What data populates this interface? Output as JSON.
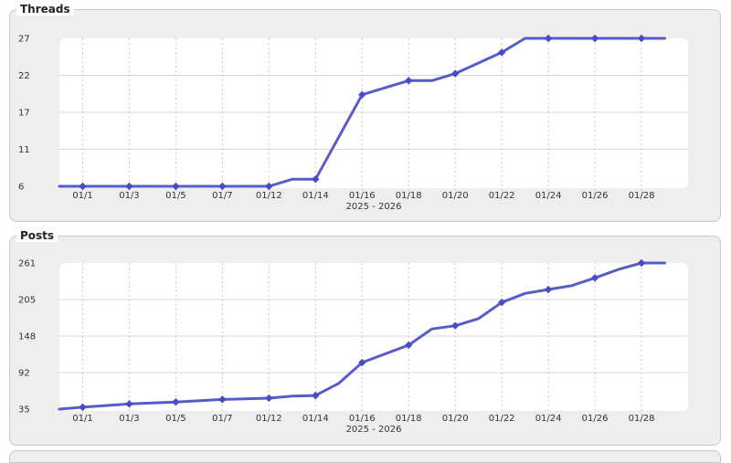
{
  "colors": {
    "line": "#565dc9",
    "marker": "#474ec5",
    "panel_bg": "#eeeeee",
    "panel_border": "#c9c9c9",
    "grid_h": "#d9d9d9",
    "grid_v": "#c9c9c9",
    "tick_text": "#333333"
  },
  "chart_data": [
    {
      "type": "line",
      "title": "Threads",
      "x_tick_labels": [
        "01/1",
        "01/3",
        "01/5",
        "01/7",
        "01/12",
        "01/14",
        "01/16",
        "01/18",
        "01/20",
        "01/22",
        "01/24",
        "01/26",
        "01/28"
      ],
      "x_axis_caption": "2025 - 2026",
      "y_tick_labels": [
        "27",
        "22",
        "17",
        "11",
        "6"
      ],
      "ylim": [
        6,
        27
      ],
      "grid": "horizontal solid, vertical dashed",
      "legend_position": "none",
      "line_color": "#565dc9",
      "marker_color": "#474ec5",
      "points": [
        {
          "date": "12/31",
          "x": -0.5,
          "value": 6,
          "marker": false
        },
        {
          "date": "01/1",
          "x": 0,
          "value": 6,
          "marker": true
        },
        {
          "date": "01/3",
          "x": 1,
          "value": 6,
          "marker": true
        },
        {
          "date": "01/5",
          "x": 2,
          "value": 6,
          "marker": true
        },
        {
          "date": "01/7",
          "x": 3,
          "value": 6,
          "marker": true
        },
        {
          "date": "01/12",
          "x": 4,
          "value": 6,
          "marker": true
        },
        {
          "date": "01/13",
          "x": 4.5,
          "value": 7,
          "marker": false
        },
        {
          "date": "01/14",
          "x": 5,
          "value": 7,
          "marker": true
        },
        {
          "date": "01/16",
          "x": 6,
          "value": 19,
          "marker": true
        },
        {
          "date": "01/18",
          "x": 7,
          "value": 21,
          "marker": true
        },
        {
          "date": "01/19",
          "x": 7.5,
          "value": 21,
          "marker": false
        },
        {
          "date": "01/20",
          "x": 8,
          "value": 22,
          "marker": true
        },
        {
          "date": "01/22",
          "x": 9,
          "value": 25,
          "marker": true
        },
        {
          "date": "01/23",
          "x": 9.5,
          "value": 27,
          "marker": false
        },
        {
          "date": "01/24",
          "x": 10,
          "value": 27,
          "marker": true
        },
        {
          "date": "01/26",
          "x": 11,
          "value": 27,
          "marker": true
        },
        {
          "date": "01/28",
          "x": 12,
          "value": 27,
          "marker": true
        },
        {
          "date": "01/29",
          "x": 12.5,
          "value": 27,
          "marker": false
        }
      ]
    },
    {
      "type": "line",
      "title": "Posts",
      "x_tick_labels": [
        "01/1",
        "01/3",
        "01/5",
        "01/7",
        "01/12",
        "01/14",
        "01/16",
        "01/18",
        "01/20",
        "01/22",
        "01/24",
        "01/26",
        "01/28"
      ],
      "x_axis_caption": "2025 - 2026",
      "y_tick_labels": [
        "261",
        "205",
        "148",
        "92",
        "35"
      ],
      "ylim": [
        35,
        261
      ],
      "grid": "horizontal solid, vertical dashed",
      "legend_position": "none",
      "line_color": "#565dc9",
      "marker_color": "#474ec5",
      "points": [
        {
          "date": "12/31",
          "x": -0.5,
          "value": 35,
          "marker": false
        },
        {
          "date": "01/1",
          "x": 0,
          "value": 38,
          "marker": true
        },
        {
          "date": "01/3",
          "x": 1,
          "value": 43,
          "marker": true
        },
        {
          "date": "01/5",
          "x": 2,
          "value": 46,
          "marker": true
        },
        {
          "date": "01/7",
          "x": 3,
          "value": 50,
          "marker": true
        },
        {
          "date": "01/12",
          "x": 4,
          "value": 52,
          "marker": true
        },
        {
          "date": "01/13",
          "x": 4.5,
          "value": 55,
          "marker": false
        },
        {
          "date": "01/14",
          "x": 5,
          "value": 56,
          "marker": true
        },
        {
          "date": "01/15",
          "x": 5.5,
          "value": 75,
          "marker": false
        },
        {
          "date": "01/16",
          "x": 6,
          "value": 107,
          "marker": true
        },
        {
          "date": "01/18",
          "x": 7,
          "value": 134,
          "marker": true
        },
        {
          "date": "01/19",
          "x": 7.5,
          "value": 159,
          "marker": false
        },
        {
          "date": "01/20",
          "x": 8,
          "value": 164,
          "marker": true
        },
        {
          "date": "01/21",
          "x": 8.5,
          "value": 175,
          "marker": false
        },
        {
          "date": "01/22",
          "x": 9,
          "value": 200,
          "marker": true
        },
        {
          "date": "01/23",
          "x": 9.5,
          "value": 214,
          "marker": false
        },
        {
          "date": "01/24",
          "x": 10,
          "value": 220,
          "marker": true
        },
        {
          "date": "01/25",
          "x": 10.5,
          "value": 226,
          "marker": false
        },
        {
          "date": "01/26",
          "x": 11,
          "value": 238,
          "marker": true
        },
        {
          "date": "01/27",
          "x": 11.5,
          "value": 251,
          "marker": false
        },
        {
          "date": "01/28",
          "x": 12,
          "value": 261,
          "marker": true
        },
        {
          "date": "01/29",
          "x": 12.5,
          "value": 261,
          "marker": false
        }
      ]
    }
  ]
}
